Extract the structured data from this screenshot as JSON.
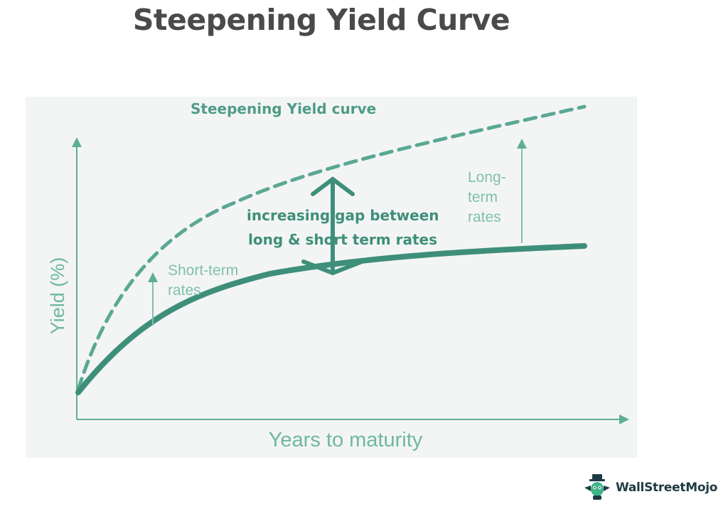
{
  "page_title": "Steepening Yield Curve",
  "brand": {
    "name": "WallStreetMojo",
    "icon": "wallstreetmojo-mascot-icon"
  },
  "colors": {
    "accent": "#3e8f7a",
    "title": "#4a4a4a",
    "panel": "#f3f5f4",
    "axis": "#5fae97",
    "label": "#6fb8a2"
  },
  "chart_data": {
    "type": "line",
    "title": "Steepening Yield curve",
    "xlabel": "Years to maturity",
    "ylabel": "Yield (%)",
    "grid": false,
    "series": [
      {
        "line_style": "solid"
      },
      {
        "line_style": "dashed"
      }
    ],
    "annotations": {
      "short_term": [
        "Short-term",
        "rates"
      ],
      "long_term": [
        "Long-",
        "term",
        "rates"
      ],
      "gap": [
        "increasing gap between",
        "long & short term rates"
      ]
    }
  }
}
